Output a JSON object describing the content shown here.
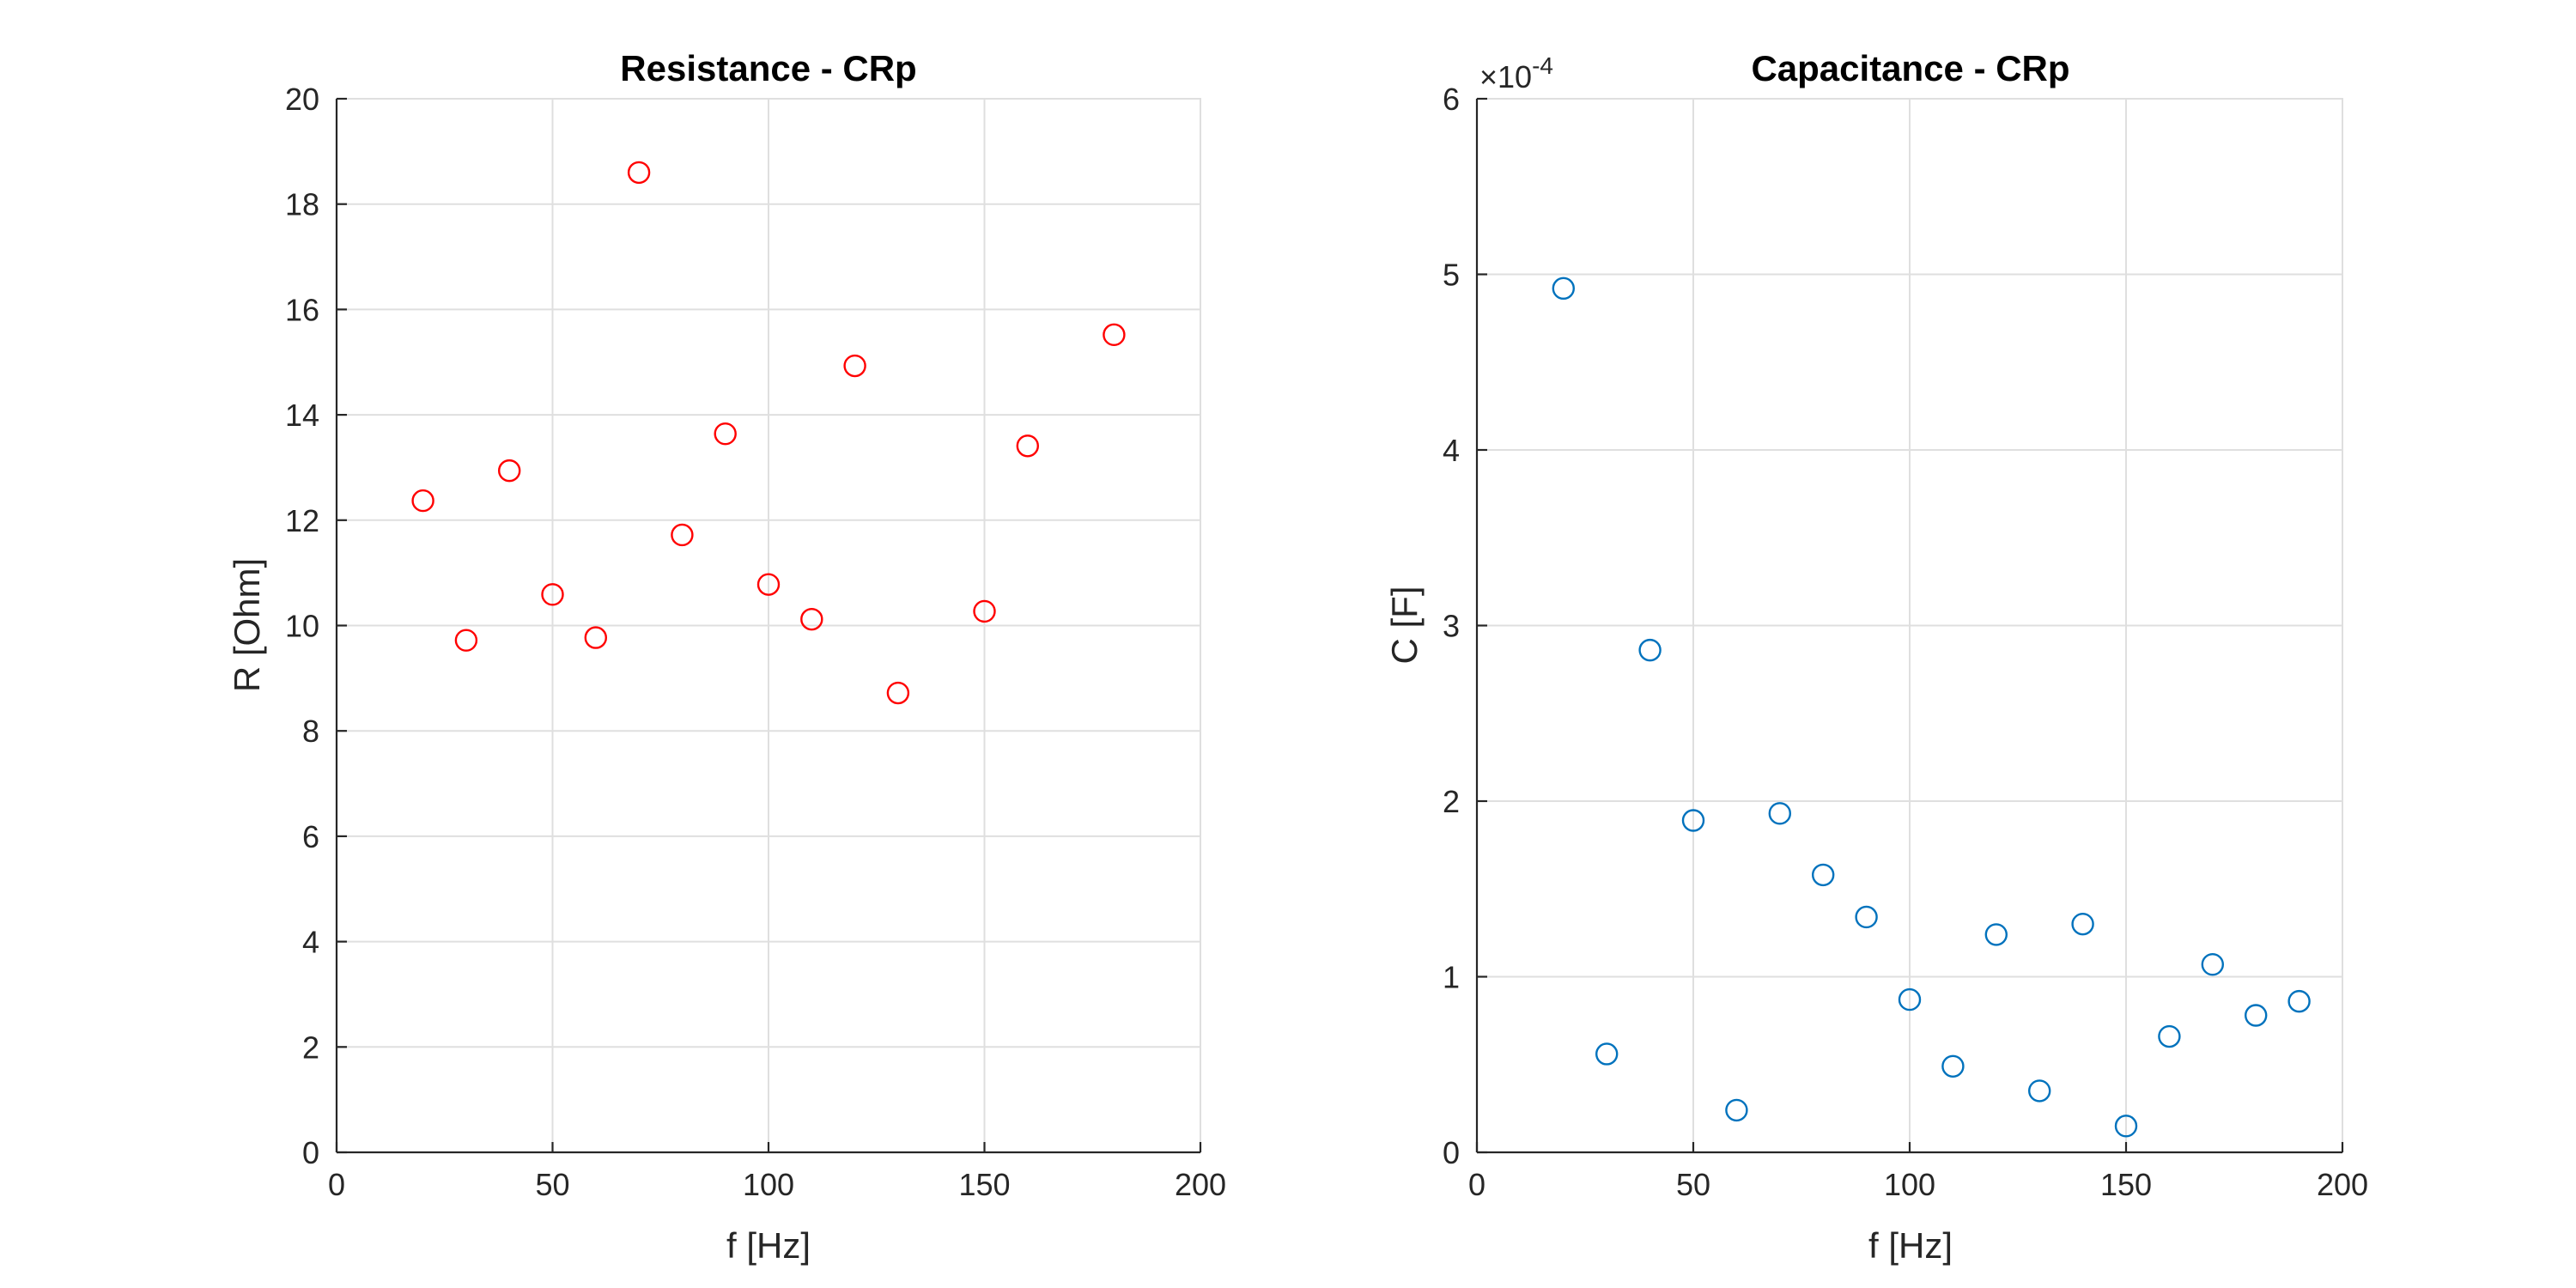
{
  "chart_data": [
    {
      "type": "scatter",
      "title": "Resistance - CRp",
      "xlabel": "f [Hz]",
      "ylabel": "R [Ohm]",
      "xlim": [
        0,
        200
      ],
      "ylim": [
        0,
        20
      ],
      "xticks": [
        0,
        50,
        100,
        150,
        200
      ],
      "xtick_labels": [
        "0",
        "50",
        "100",
        "150",
        "200"
      ],
      "yticks": [
        0,
        2,
        4,
        6,
        8,
        10,
        12,
        14,
        16,
        18,
        20
      ],
      "ytick_labels": [
        "0",
        "2",
        "4",
        "6",
        "8",
        "10",
        "12",
        "14",
        "16",
        "18",
        "20"
      ],
      "exponent_label": "",
      "grid": true,
      "marker": "circle-open",
      "color": "#ff0000",
      "series": [
        {
          "x": [
            20,
            30,
            40,
            50,
            60,
            70,
            80,
            90,
            100,
            110,
            120,
            130,
            150,
            160,
            180
          ],
          "y": [
            12.37,
            9.72,
            12.94,
            10.59,
            9.77,
            18.6,
            11.72,
            13.64,
            10.78,
            10.12,
            14.93,
            8.72,
            10.27,
            13.41,
            15.52
          ]
        }
      ]
    },
    {
      "type": "scatter",
      "title": "Capacitance - CRp",
      "xlabel": "f [Hz]",
      "ylabel": "C [F]",
      "xlim": [
        0,
        200
      ],
      "ylim": [
        0,
        6
      ],
      "xticks": [
        0,
        50,
        100,
        150,
        200
      ],
      "xtick_labels": [
        "0",
        "50",
        "100",
        "150",
        "200"
      ],
      "yticks": [
        0,
        1,
        2,
        3,
        4,
        5,
        6
      ],
      "ytick_labels": [
        "0",
        "1",
        "2",
        "3",
        "4",
        "5",
        "6"
      ],
      "y_scale_factor": "1e-4",
      "exponent_label": "×10",
      "exponent_value": "-4",
      "grid": true,
      "marker": "circle-open",
      "color": "#0072bd",
      "series": [
        {
          "x": [
            20,
            30,
            40,
            50,
            60,
            70,
            80,
            90,
            100,
            110,
            120,
            130,
            140,
            150,
            160,
            170,
            180,
            190
          ],
          "y": [
            4.92,
            0.56,
            2.86,
            1.89,
            0.24,
            1.93,
            1.58,
            1.34,
            0.87,
            0.49,
            1.24,
            0.35,
            1.3,
            0.15,
            0.66,
            1.07,
            0.78,
            0.86
          ]
        }
      ]
    }
  ]
}
